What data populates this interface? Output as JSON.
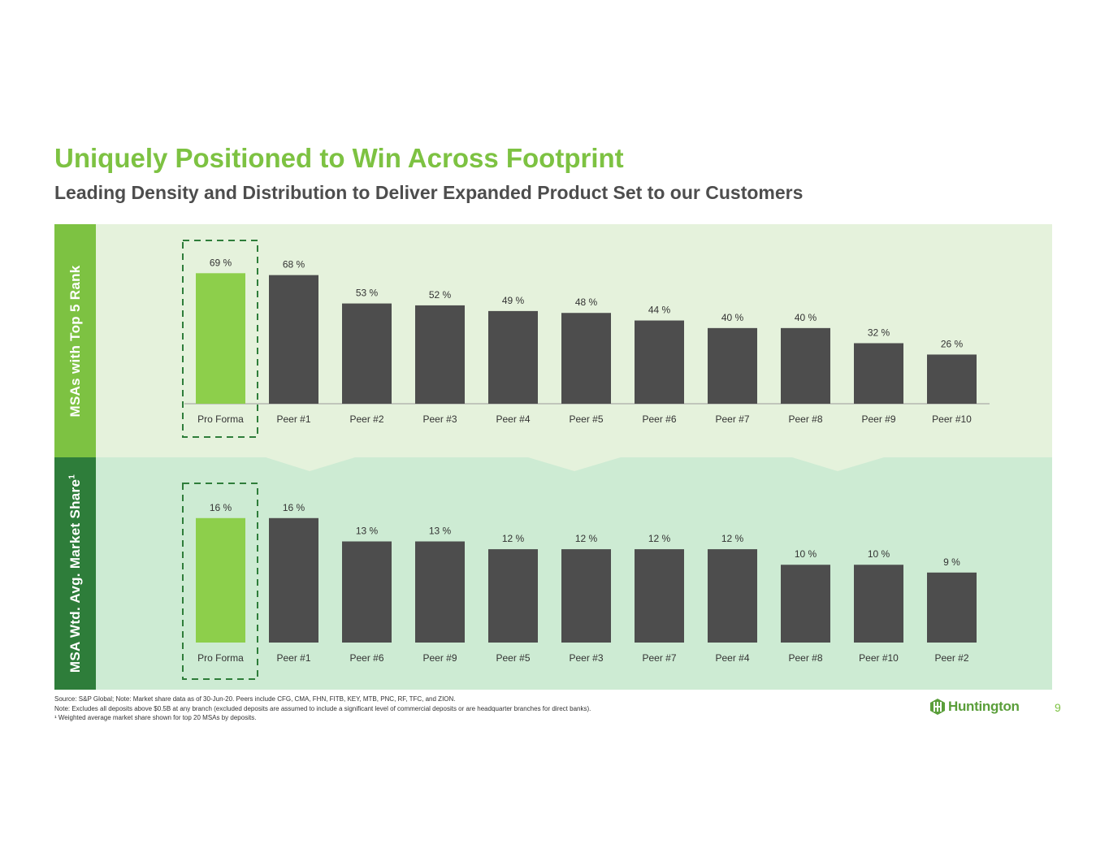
{
  "header": {
    "title": "Uniquely Positioned to Win Across Footprint",
    "subtitle": "Leading Density and Distribution to Deliver Expanded Product Set to our Customers"
  },
  "colors": {
    "brand_green": "#7dc242",
    "highlight_bar": "#8dcf4b",
    "peer_bar": "#4d4d4d",
    "dark_green": "#2e7d3a"
  },
  "chart_data": [
    {
      "type": "bar",
      "title": "MSAs with Top 5 Rank",
      "ylabel": "MSAs with Top 5 Rank",
      "unit": "%",
      "categories": [
        "Pro Forma",
        "Peer #1",
        "Peer #2",
        "Peer #3",
        "Peer #4",
        "Peer #5",
        "Peer #6",
        "Peer #7",
        "Peer #8",
        "Peer #9",
        "Peer #10"
      ],
      "values": [
        69,
        68,
        53,
        52,
        49,
        48,
        44,
        40,
        40,
        32,
        26
      ],
      "labels": [
        "69 %",
        "68 %",
        "53 %",
        "52 %",
        "49 %",
        "48 %",
        "44 %",
        "40 %",
        "40 %",
        "32 %",
        "26 %"
      ],
      "highlight_index": 0,
      "ylim": [
        0,
        70
      ]
    },
    {
      "type": "bar",
      "title": "MSA Wtd. Avg. Market Share¹",
      "ylabel": "MSA Wtd. Avg. Market Share",
      "ylabel_sup": "1",
      "unit": "%",
      "categories": [
        "Pro Forma",
        "Peer #1",
        "Peer #6",
        "Peer #9",
        "Peer #5",
        "Peer #3",
        "Peer #7",
        "Peer #4",
        "Peer #8",
        "Peer #10",
        "Peer #2"
      ],
      "values": [
        16,
        16,
        13,
        13,
        12,
        12,
        12,
        12,
        10,
        10,
        9
      ],
      "labels": [
        "16 %",
        "16 %",
        "13 %",
        "13 %",
        "12 %",
        "12 %",
        "12 %",
        "12 %",
        "10 %",
        "10 %",
        "9 %"
      ],
      "highlight_index": 0,
      "ylim": [
        0,
        16.5
      ]
    }
  ],
  "footnotes": {
    "source": "Source:  S&P Global;  Note:  Market share data as of 30-Jun-20. Peers include CFG, CMA, FHN, FITB, KEY, MTB, PNC, RF, TFC, and ZION.",
    "note": "Note: Excludes all deposits above $0.5B at any branch (excluded deposits are assumed to include a significant level of commercial deposits or are headquarter branches for direct banks).",
    "weighted": "¹ Weighted average market share shown for top 20 MSAs by deposits."
  },
  "logo": {
    "text": "Huntington",
    "icon": "huntington-logo-icon"
  },
  "page_number": "9"
}
